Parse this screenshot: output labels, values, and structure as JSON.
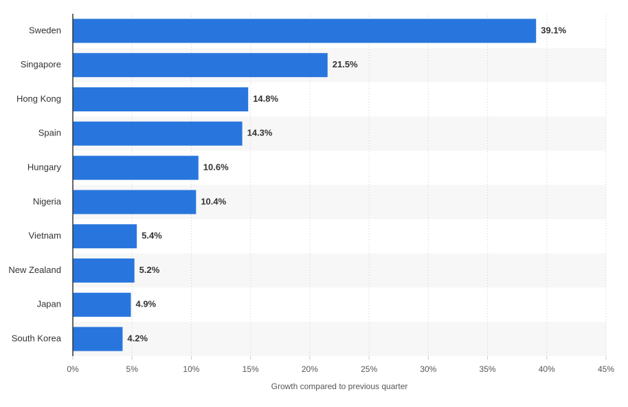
{
  "chart_data": {
    "type": "bar",
    "orientation": "horizontal",
    "x_label": "Growth compared to previous quarter",
    "categories": [
      "Sweden",
      "Singapore",
      "Hong Kong",
      "Spain",
      "Hungary",
      "Nigeria",
      "Vietnam",
      "New Zealand",
      "Japan",
      "South Korea"
    ],
    "values": [
      39.1,
      21.5,
      14.8,
      14.3,
      10.6,
      10.4,
      5.4,
      5.2,
      4.9,
      4.2
    ],
    "value_labels": [
      "39.1%",
      "21.5%",
      "14.8%",
      "14.3%",
      "10.6%",
      "10.4%",
      "5.4%",
      "5.2%",
      "4.9%",
      "4.2%"
    ],
    "color": "#2876dd",
    "xlim": [
      0,
      45
    ],
    "xticks": [
      {
        "value": 0,
        "label": "0%"
      },
      {
        "value": 5,
        "label": "5%"
      },
      {
        "value": 10,
        "label": "10%"
      },
      {
        "value": 15,
        "label": "15%"
      },
      {
        "value": 20,
        "label": "20%"
      },
      {
        "value": 25,
        "label": "25%"
      },
      {
        "value": 30,
        "label": "30%"
      },
      {
        "value": 35,
        "label": "35%"
      },
      {
        "value": 40,
        "label": "40%"
      },
      {
        "value": 45,
        "label": "45%"
      }
    ],
    "grid": true
  }
}
